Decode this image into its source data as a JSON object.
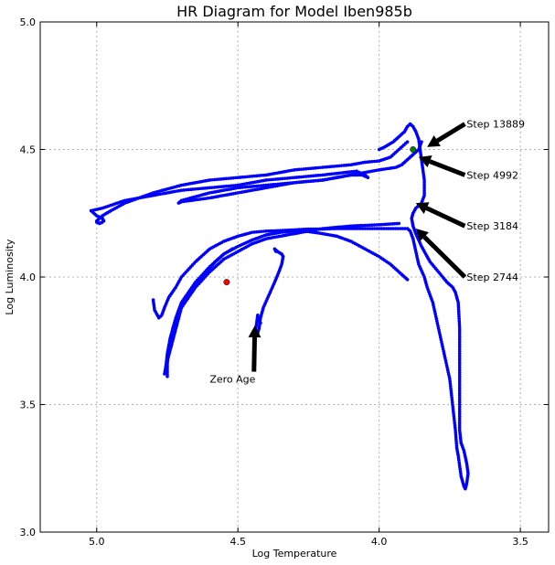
{
  "chart_data": {
    "type": "scatter",
    "title": "HR Diagram for Model Iben985b",
    "xlabel": "Log Temperature",
    "ylabel": "Log Luminosity",
    "xlim": [
      5.2,
      3.4
    ],
    "ylim": [
      3.0,
      5.0
    ],
    "x_inverted": true,
    "grid": true,
    "xticks": [
      5.0,
      4.5,
      4.0,
      3.5
    ],
    "xtick_labels": [
      "5.0",
      "4.5",
      "4.0",
      "3.5"
    ],
    "yticks": [
      3.0,
      3.5,
      4.0,
      4.5,
      5.0
    ],
    "ytick_labels": [
      "3.0",
      "3.5",
      "4.0",
      "4.5",
      "5.0"
    ],
    "track_color": "#0000ff",
    "track_segments": [
      [
        [
          4.8,
          3.91
        ],
        [
          4.795,
          3.87
        ],
        [
          4.78,
          3.84
        ],
        [
          4.77,
          3.85
        ],
        [
          4.76,
          3.88
        ],
        [
          4.745,
          3.92
        ],
        [
          4.72,
          3.96
        ],
        [
          4.7,
          4.0
        ],
        [
          4.65,
          4.06
        ],
        [
          4.6,
          4.11
        ],
        [
          4.55,
          4.14
        ],
        [
          4.5,
          4.16
        ],
        [
          4.45,
          4.175
        ],
        [
          4.4,
          4.18
        ],
        [
          4.35,
          4.182
        ],
        [
          4.3,
          4.185
        ],
        [
          4.25,
          4.188
        ],
        [
          4.2,
          4.188
        ],
        [
          4.15,
          4.19
        ],
        [
          4.1,
          4.19
        ],
        [
          4.05,
          4.19
        ],
        [
          4.0,
          4.19
        ],
        [
          3.95,
          4.19
        ],
        [
          3.9,
          4.19
        ],
        [
          3.89,
          4.18
        ],
        [
          3.88,
          4.15
        ],
        [
          3.87,
          4.1
        ],
        [
          3.86,
          4.05
        ],
        [
          3.84,
          4.0
        ],
        [
          3.83,
          3.96
        ],
        [
          3.81,
          3.9
        ],
        [
          3.79,
          3.8
        ],
        [
          3.77,
          3.7
        ],
        [
          3.75,
          3.6
        ],
        [
          3.74,
          3.5
        ],
        [
          3.73,
          3.4
        ],
        [
          3.725,
          3.33
        ],
        [
          3.72,
          3.3
        ],
        [
          3.71,
          3.22
        ],
        [
          3.7,
          3.18
        ],
        [
          3.695,
          3.17
        ],
        [
          3.69,
          3.19
        ],
        [
          3.685,
          3.23
        ],
        [
          3.69,
          3.27
        ],
        [
          3.7,
          3.32
        ],
        [
          3.71,
          3.35
        ],
        [
          3.715,
          3.4
        ],
        [
          3.715,
          3.5
        ],
        [
          3.715,
          3.6
        ],
        [
          3.715,
          3.7
        ],
        [
          3.715,
          3.8
        ],
        [
          3.72,
          3.9
        ],
        [
          3.73,
          3.94
        ],
        [
          3.74,
          3.96
        ],
        [
          3.76,
          3.98
        ],
        [
          3.79,
          4.02
        ],
        [
          3.82,
          4.06
        ],
        [
          3.85,
          4.12
        ],
        [
          3.87,
          4.17
        ],
        [
          3.88,
          4.2
        ],
        [
          3.885,
          4.23
        ],
        [
          3.88,
          4.25
        ],
        [
          3.87,
          4.27
        ],
        [
          3.85,
          4.29
        ],
        [
          3.84,
          4.32
        ],
        [
          3.84,
          4.38
        ],
        [
          3.845,
          4.42
        ],
        [
          3.85,
          4.46
        ],
        [
          3.855,
          4.5
        ],
        [
          3.86,
          4.54
        ],
        [
          3.87,
          4.57
        ],
        [
          3.88,
          4.59
        ],
        [
          3.89,
          4.6
        ],
        [
          3.9,
          4.59
        ],
        [
          3.91,
          4.57
        ],
        [
          3.93,
          4.55
        ],
        [
          3.95,
          4.53
        ],
        [
          3.98,
          4.51
        ],
        [
          4.0,
          4.5
        ]
      ],
      [
        [
          3.9,
          4.53
        ],
        [
          3.93,
          4.5
        ],
        [
          3.96,
          4.47
        ],
        [
          4.0,
          4.455
        ],
        [
          4.05,
          4.45
        ],
        [
          4.1,
          4.44
        ],
        [
          4.2,
          4.43
        ],
        [
          4.3,
          4.42
        ],
        [
          4.4,
          4.4
        ],
        [
          4.5,
          4.39
        ],
        [
          4.6,
          4.38
        ],
        [
          4.7,
          4.36
        ],
        [
          4.8,
          4.33
        ],
        [
          4.9,
          4.29
        ],
        [
          4.95,
          4.26
        ],
        [
          4.98,
          4.24
        ],
        [
          5.0,
          4.22
        ],
        [
          5.0,
          4.215
        ],
        [
          4.99,
          4.21
        ],
        [
          4.98,
          4.215
        ],
        [
          4.975,
          4.22
        ],
        [
          4.98,
          4.23
        ],
        [
          5.0,
          4.24
        ],
        [
          5.02,
          4.26
        ],
        [
          4.98,
          4.27
        ],
        [
          4.9,
          4.3
        ],
        [
          4.8,
          4.32
        ],
        [
          4.7,
          4.34
        ],
        [
          4.6,
          4.35
        ],
        [
          4.5,
          4.36
        ],
        [
          4.4,
          4.38
        ],
        [
          4.3,
          4.39
        ],
        [
          4.2,
          4.4
        ],
        [
          4.12,
          4.41
        ],
        [
          4.08,
          4.415
        ],
        [
          4.05,
          4.4
        ],
        [
          4.04,
          4.39
        ],
        [
          4.06,
          4.4
        ],
        [
          4.1,
          4.4
        ],
        [
          4.2,
          4.38
        ],
        [
          4.3,
          4.37
        ],
        [
          4.4,
          4.36
        ],
        [
          4.5,
          4.35
        ],
        [
          4.6,
          4.33
        ],
        [
          4.7,
          4.3
        ],
        [
          4.71,
          4.29
        ],
        [
          4.7,
          4.295
        ],
        [
          4.6,
          4.31
        ],
        [
          4.5,
          4.33
        ],
        [
          4.4,
          4.35
        ],
        [
          4.3,
          4.37
        ],
        [
          4.2,
          4.38
        ],
        [
          4.1,
          4.4
        ],
        [
          4.0,
          4.42
        ],
        [
          3.94,
          4.43
        ],
        [
          3.92,
          4.44
        ],
        [
          3.9,
          4.46
        ],
        [
          3.88,
          4.48
        ],
        [
          3.86,
          4.5
        ],
        [
          3.85,
          4.53
        ]
      ],
      [
        [
          4.76,
          3.62
        ],
        [
          4.755,
          3.65
        ],
        [
          4.75,
          3.7
        ],
        [
          4.74,
          3.76
        ],
        [
          4.72,
          3.84
        ],
        [
          4.7,
          3.9
        ],
        [
          4.65,
          3.98
        ],
        [
          4.6,
          4.04
        ],
        [
          4.55,
          4.09
        ],
        [
          4.5,
          4.12
        ],
        [
          4.45,
          4.145
        ],
        [
          4.4,
          4.165
        ],
        [
          4.35,
          4.175
        ],
        [
          4.3,
          4.18
        ],
        [
          4.25,
          4.178
        ],
        [
          4.2,
          4.17
        ],
        [
          4.15,
          4.16
        ],
        [
          4.1,
          4.14
        ],
        [
          4.05,
          4.11
        ],
        [
          4.0,
          4.08
        ],
        [
          3.96,
          4.05
        ],
        [
          3.92,
          4.01
        ],
        [
          3.9,
          3.99
        ]
      ],
      [
        [
          4.75,
          3.61
        ],
        [
          4.75,
          3.66
        ],
        [
          4.745,
          3.72
        ],
        [
          4.73,
          3.8
        ],
        [
          4.7,
          3.88
        ],
        [
          4.66,
          3.95
        ],
        [
          4.62,
          4.01
        ],
        [
          4.58,
          4.06
        ],
        [
          4.55,
          4.09
        ],
        [
          4.52,
          4.11
        ]
      ],
      [
        [
          4.755,
          3.65
        ],
        [
          4.7,
          3.88
        ],
        [
          4.65,
          3.96
        ],
        [
          4.6,
          4.02
        ],
        [
          4.55,
          4.07
        ],
        [
          4.5,
          4.1
        ],
        [
          4.45,
          4.13
        ],
        [
          4.4,
          4.15
        ],
        [
          4.3,
          4.17
        ],
        [
          4.2,
          4.19
        ],
        [
          4.1,
          4.2
        ],
        [
          4.0,
          4.205
        ],
        [
          3.93,
          4.21
        ]
      ],
      [
        [
          4.43,
          3.78
        ],
        [
          4.425,
          3.8
        ],
        [
          4.42,
          3.84
        ],
        [
          4.41,
          3.88
        ],
        [
          4.39,
          3.93
        ],
        [
          4.37,
          3.98
        ],
        [
          4.355,
          4.02
        ],
        [
          4.345,
          4.05
        ],
        [
          4.34,
          4.08
        ],
        [
          4.345,
          4.09
        ],
        [
          4.36,
          4.1
        ],
        [
          4.37,
          4.11
        ],
        [
          4.365,
          4.1
        ]
      ],
      [
        [
          4.44,
          3.79
        ],
        [
          4.435,
          3.81
        ],
        [
          4.43,
          3.85
        ],
        [
          4.425,
          3.83
        ],
        [
          4.42,
          3.82
        ]
      ]
    ],
    "markers": [
      {
        "x": 4.54,
        "y": 3.98,
        "color": "#ff0000"
      },
      {
        "x": 3.88,
        "y": 4.5,
        "color": "#008000"
      }
    ],
    "annotations": [
      {
        "text": "Zero Age",
        "text_x": 4.6,
        "text_y": 3.6,
        "arrow_x": 4.44,
        "arrow_y": 3.81
      },
      {
        "text": "Step 2744",
        "text_x": 3.69,
        "text_y": 4.0,
        "arrow_x": 3.87,
        "arrow_y": 4.19
      },
      {
        "text": "Step 3184",
        "text_x": 3.69,
        "text_y": 4.2,
        "arrow_x": 3.87,
        "arrow_y": 4.29
      },
      {
        "text": "Step 4992",
        "text_x": 3.69,
        "text_y": 4.4,
        "arrow_x": 3.86,
        "arrow_y": 4.47
      },
      {
        "text": "Step 13889",
        "text_x": 3.69,
        "text_y": 4.6,
        "arrow_x": 3.83,
        "arrow_y": 4.51
      }
    ]
  }
}
